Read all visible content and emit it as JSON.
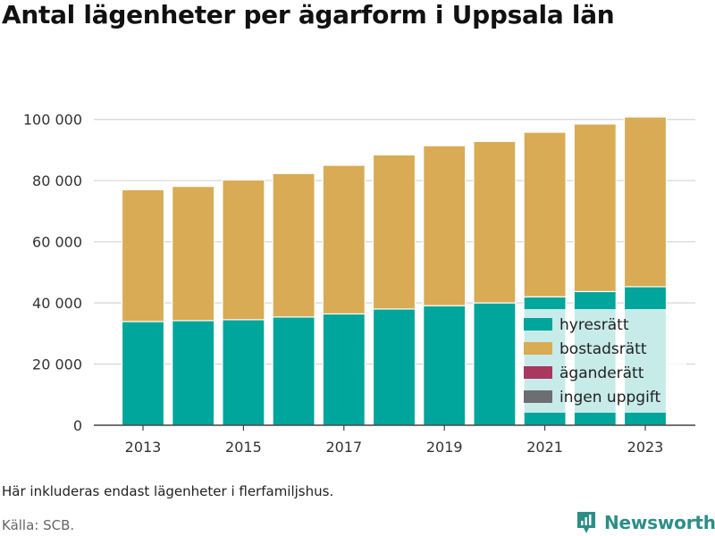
{
  "title": "Antal lägenheter per ägarform i Uppsala län",
  "note": "Här inkluderas endast lägenheter i flerfamiljshus.",
  "source": "Källa: SCB.",
  "brand": {
    "name": "Newsworthy",
    "icon": "newsworthy-logo-icon",
    "color": "#2c8f87"
  },
  "chart_data": {
    "type": "bar",
    "stacked": true,
    "title": "Antal lägenheter per ägarform i Uppsala län",
    "xlabel": "",
    "ylabel": "",
    "categories": [
      "2013",
      "2014",
      "2015",
      "2016",
      "2017",
      "2018",
      "2019",
      "2020",
      "2021",
      "2022",
      "2023"
    ],
    "x_tick_labels": [
      "2013",
      "2015",
      "2017",
      "2019",
      "2021",
      "2023"
    ],
    "y_ticks": [
      0,
      20000,
      40000,
      60000,
      80000,
      100000
    ],
    "y_tick_labels": [
      "0",
      "20 000",
      "40 000",
      "60 000",
      "80 000",
      "100 000"
    ],
    "ylim": [
      0,
      104000
    ],
    "grid": "horizontal",
    "legend_position": "bottom-right",
    "series": [
      {
        "name": "hyresrätt",
        "color": "#00a59b",
        "values": [
          33900,
          34200,
          34500,
          35400,
          36400,
          38000,
          39100,
          40000,
          42000,
          43700,
          45300
        ]
      },
      {
        "name": "bostadsrätt",
        "color": "#d9ab55",
        "values": [
          43100,
          43900,
          45700,
          46900,
          48600,
          50400,
          52300,
          52800,
          53800,
          54800,
          55500
        ]
      },
      {
        "name": "äganderätt",
        "color": "#a8385f",
        "values": [
          0,
          0,
          0,
          0,
          0,
          0,
          0,
          0,
          0,
          0,
          0
        ]
      },
      {
        "name": "ingen uppgift",
        "color": "#6d6e71",
        "values": [
          0,
          0,
          0,
          0,
          0,
          0,
          0,
          0,
          0,
          0,
          0
        ]
      }
    ]
  }
}
